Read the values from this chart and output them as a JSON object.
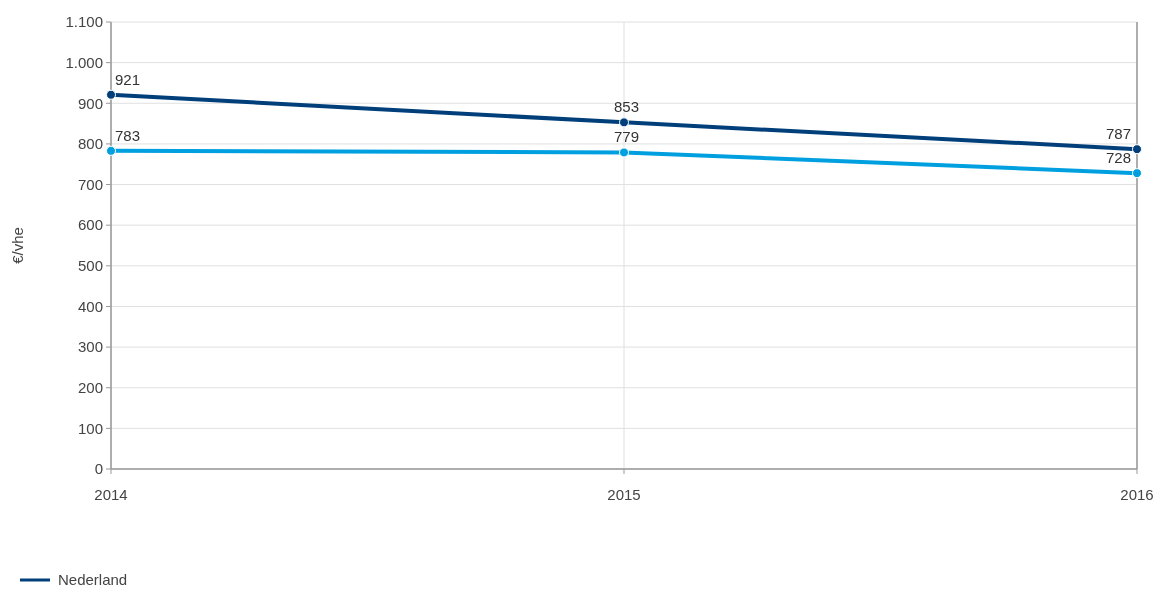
{
  "chart_data": {
    "type": "line",
    "ylabel": "€/vhe",
    "x": [
      2014,
      2015,
      2016
    ],
    "xlim": [
      2014,
      2016
    ],
    "xticks": [
      2014,
      2015,
      2016
    ],
    "ylim": [
      0,
      1100
    ],
    "yticks": [
      0,
      100,
      200,
      300,
      400,
      500,
      600,
      700,
      800,
      900,
      {
        "value": 1000,
        "label": "1.000"
      },
      {
        "value": 1100,
        "label": "1.100"
      }
    ],
    "series": [
      {
        "color": "#00a0e0",
        "values": [
          783,
          779,
          728
        ]
      },
      {
        "name": "Nederland",
        "color": "#003f7a",
        "values": [
          921,
          853,
          787
        ]
      }
    ],
    "data_labels": true,
    "grid": true,
    "marker": "circle",
    "line_style": "solid",
    "legend": "bottom left"
  }
}
